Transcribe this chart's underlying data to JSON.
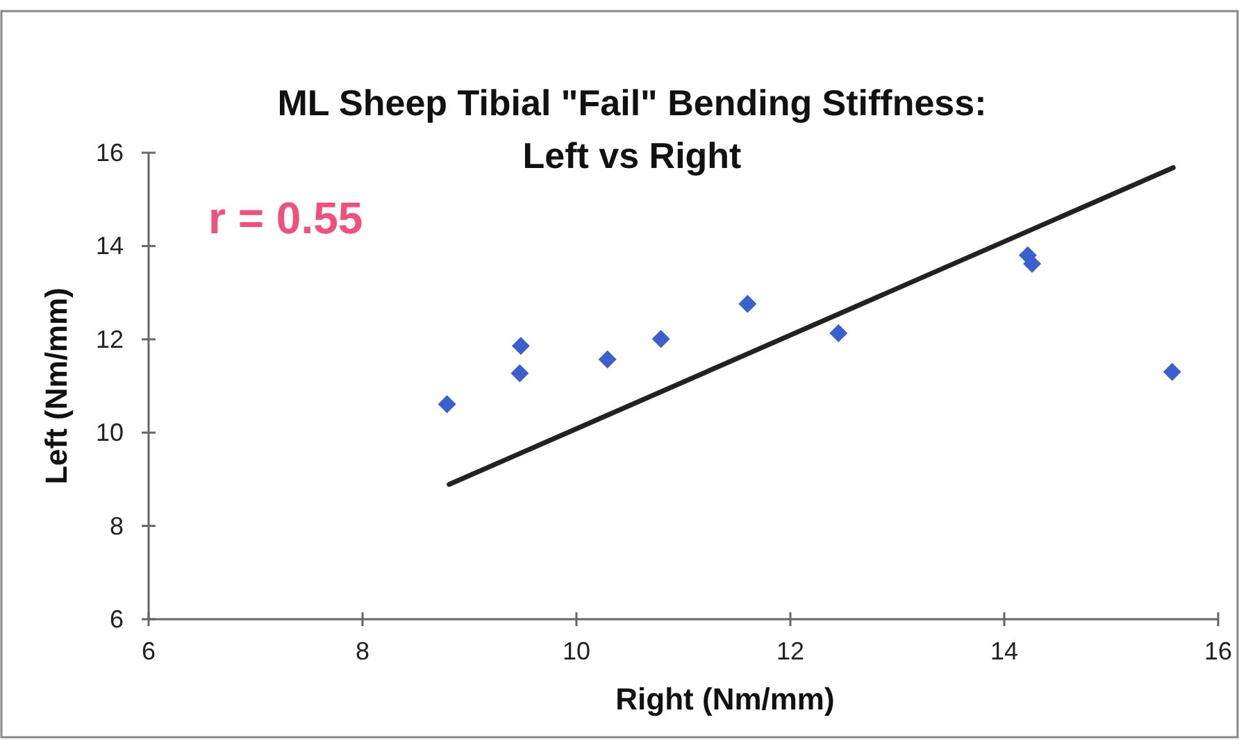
{
  "chart_data": {
    "type": "scatter",
    "title": "ML Sheep Tibial \"Fail\" Bending Stiffness:\nLeft vs Right",
    "xlabel": "Right (Nm/mm)",
    "ylabel": "Left (Nm/mm)",
    "annotations": [
      "r = 0.55"
    ],
    "xlim": [
      6,
      16
    ],
    "xticks": [
      6,
      8,
      10,
      12,
      14,
      16
    ],
    "ylim": [
      6,
      16
    ],
    "yticks": [
      6,
      8,
      10,
      12,
      14,
      16
    ],
    "grid": false,
    "marker": "diamond",
    "series": [
      {
        "color": "#3b5fcf",
        "x": [
          8.79,
          9.48,
          9.47,
          10.29,
          10.79,
          11.6,
          12.45,
          14.22,
          14.26,
          15.57
        ],
        "values": [
          10.61,
          11.86,
          11.27,
          11.57,
          12.01,
          12.76,
          12.13,
          13.8,
          13.62,
          11.3
        ]
      },
      {
        "type": "line",
        "color": "#222222",
        "x": [
          8.81,
          15.58
        ],
        "values": [
          8.89,
          15.68
        ],
        "marker": "none",
        "line_style": "solid"
      }
    ]
  }
}
